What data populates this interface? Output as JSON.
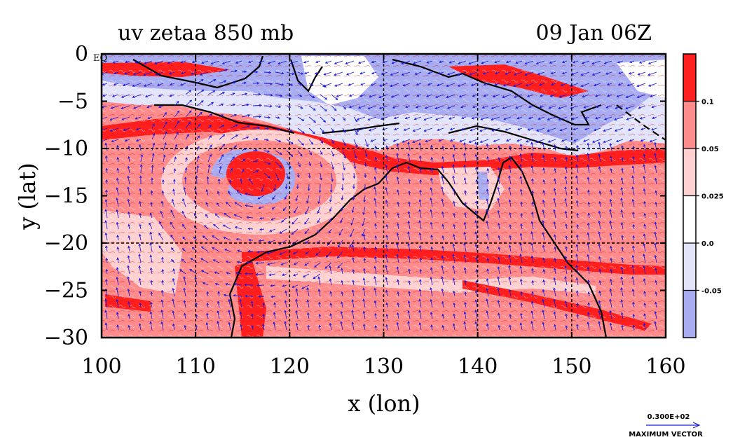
{
  "chart_data": {
    "type": "heatmap",
    "title": "uv zetaa 850 mb",
    "time_label": "09 Jan 06Z",
    "xlabel": "x (lon)",
    "ylabel": "y (lat)",
    "xlim": [
      100,
      160
    ],
    "ylim": [
      -30,
      0
    ],
    "x_ticks": [
      100,
      110,
      120,
      130,
      140,
      150,
      160
    ],
    "y_ticks": [
      0,
      -5,
      -10,
      -15,
      -20,
      -25,
      -30
    ],
    "y_tick_labels": [
      "0",
      "−5",
      "−10",
      "−15",
      "−20",
      "−25",
      "−30"
    ],
    "y_zero_suffix": "EQ",
    "grid": true,
    "grid_x": [
      110,
      120,
      130,
      140,
      150
    ],
    "grid_y": [
      -10,
      -20
    ],
    "colorbar": {
      "placement": "right",
      "levels": [
        -0.05,
        0.0,
        0.025,
        0.05,
        0.1
      ],
      "labels": [
        "-0.05",
        "0.0",
        "0.025",
        "0.05",
        "0.1"
      ],
      "colors": [
        "#a8adf2",
        "#e2e4fb",
        "#ffffff",
        "#ffd0d0",
        "#ff8c8c",
        "#ff1f1f"
      ]
    },
    "vector_legend": {
      "value_label": "0.300E+02",
      "caption": "MAXIMUM VECTOR",
      "color": "#1a1adc"
    },
    "field": {
      "cyclone_center": [
        116.5,
        -13.5
      ],
      "negative_band_lat": [
        -3,
        -8
      ]
    }
  }
}
